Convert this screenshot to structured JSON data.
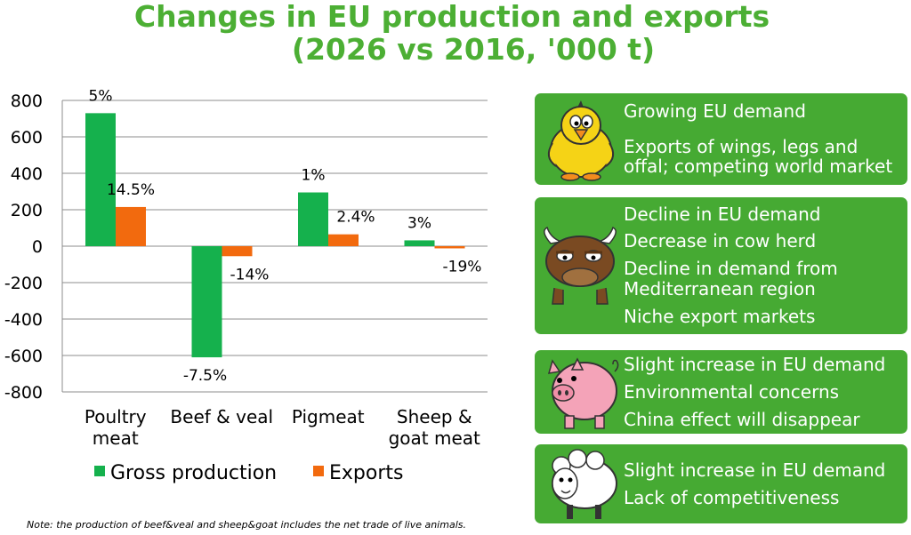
{
  "title": {
    "line1": "Changes in EU production and exports",
    "line2": "(2026 vs 2016, '000 t)"
  },
  "chart_data": {
    "type": "bar",
    "categories": [
      [
        "Poultry",
        "meat"
      ],
      [
        "Beef & veal"
      ],
      [
        "Pigmeat"
      ],
      [
        "Sheep &",
        "goat meat"
      ]
    ],
    "series": [
      {
        "name": "Gross production",
        "color": "#15B14D",
        "values": [
          730,
          -610,
          295,
          32
        ],
        "labels": [
          "5%",
          "-7.5%",
          "1%",
          "3%"
        ]
      },
      {
        "name": "Exports",
        "color": "#F26A0E",
        "values": [
          215,
          -55,
          65,
          -12
        ],
        "labels": [
          "14.5%",
          "-14%",
          "2.4%",
          "-19%"
        ]
      }
    ],
    "ylim": [
      -800,
      800
    ],
    "yticks": [
      800,
      600,
      400,
      200,
      0,
      -200,
      -400,
      -600,
      -800
    ],
    "grid": true,
    "legend": "bottom"
  },
  "panels": [
    {
      "icon": "chick-icon",
      "lines": [
        "Growing EU demand",
        "Exports of wings, legs and",
        "offal; competing world market"
      ]
    },
    {
      "icon": "bull-icon",
      "lines": [
        "Decline in EU demand",
        "Decrease in cow herd",
        "Decline in demand from",
        "Mediterranean region",
        "Niche export markets"
      ]
    },
    {
      "icon": "pig-icon",
      "lines": [
        "Slight increase in EU demand",
        "Environmental concerns",
        "China effect will disappear"
      ]
    },
    {
      "icon": "sheep-icon",
      "lines": [
        "Slight increase in EU demand",
        "Lack of competitiveness"
      ]
    }
  ],
  "note": "Note: the production of beef&veal and sheep&goat includes the net trade of live animals."
}
